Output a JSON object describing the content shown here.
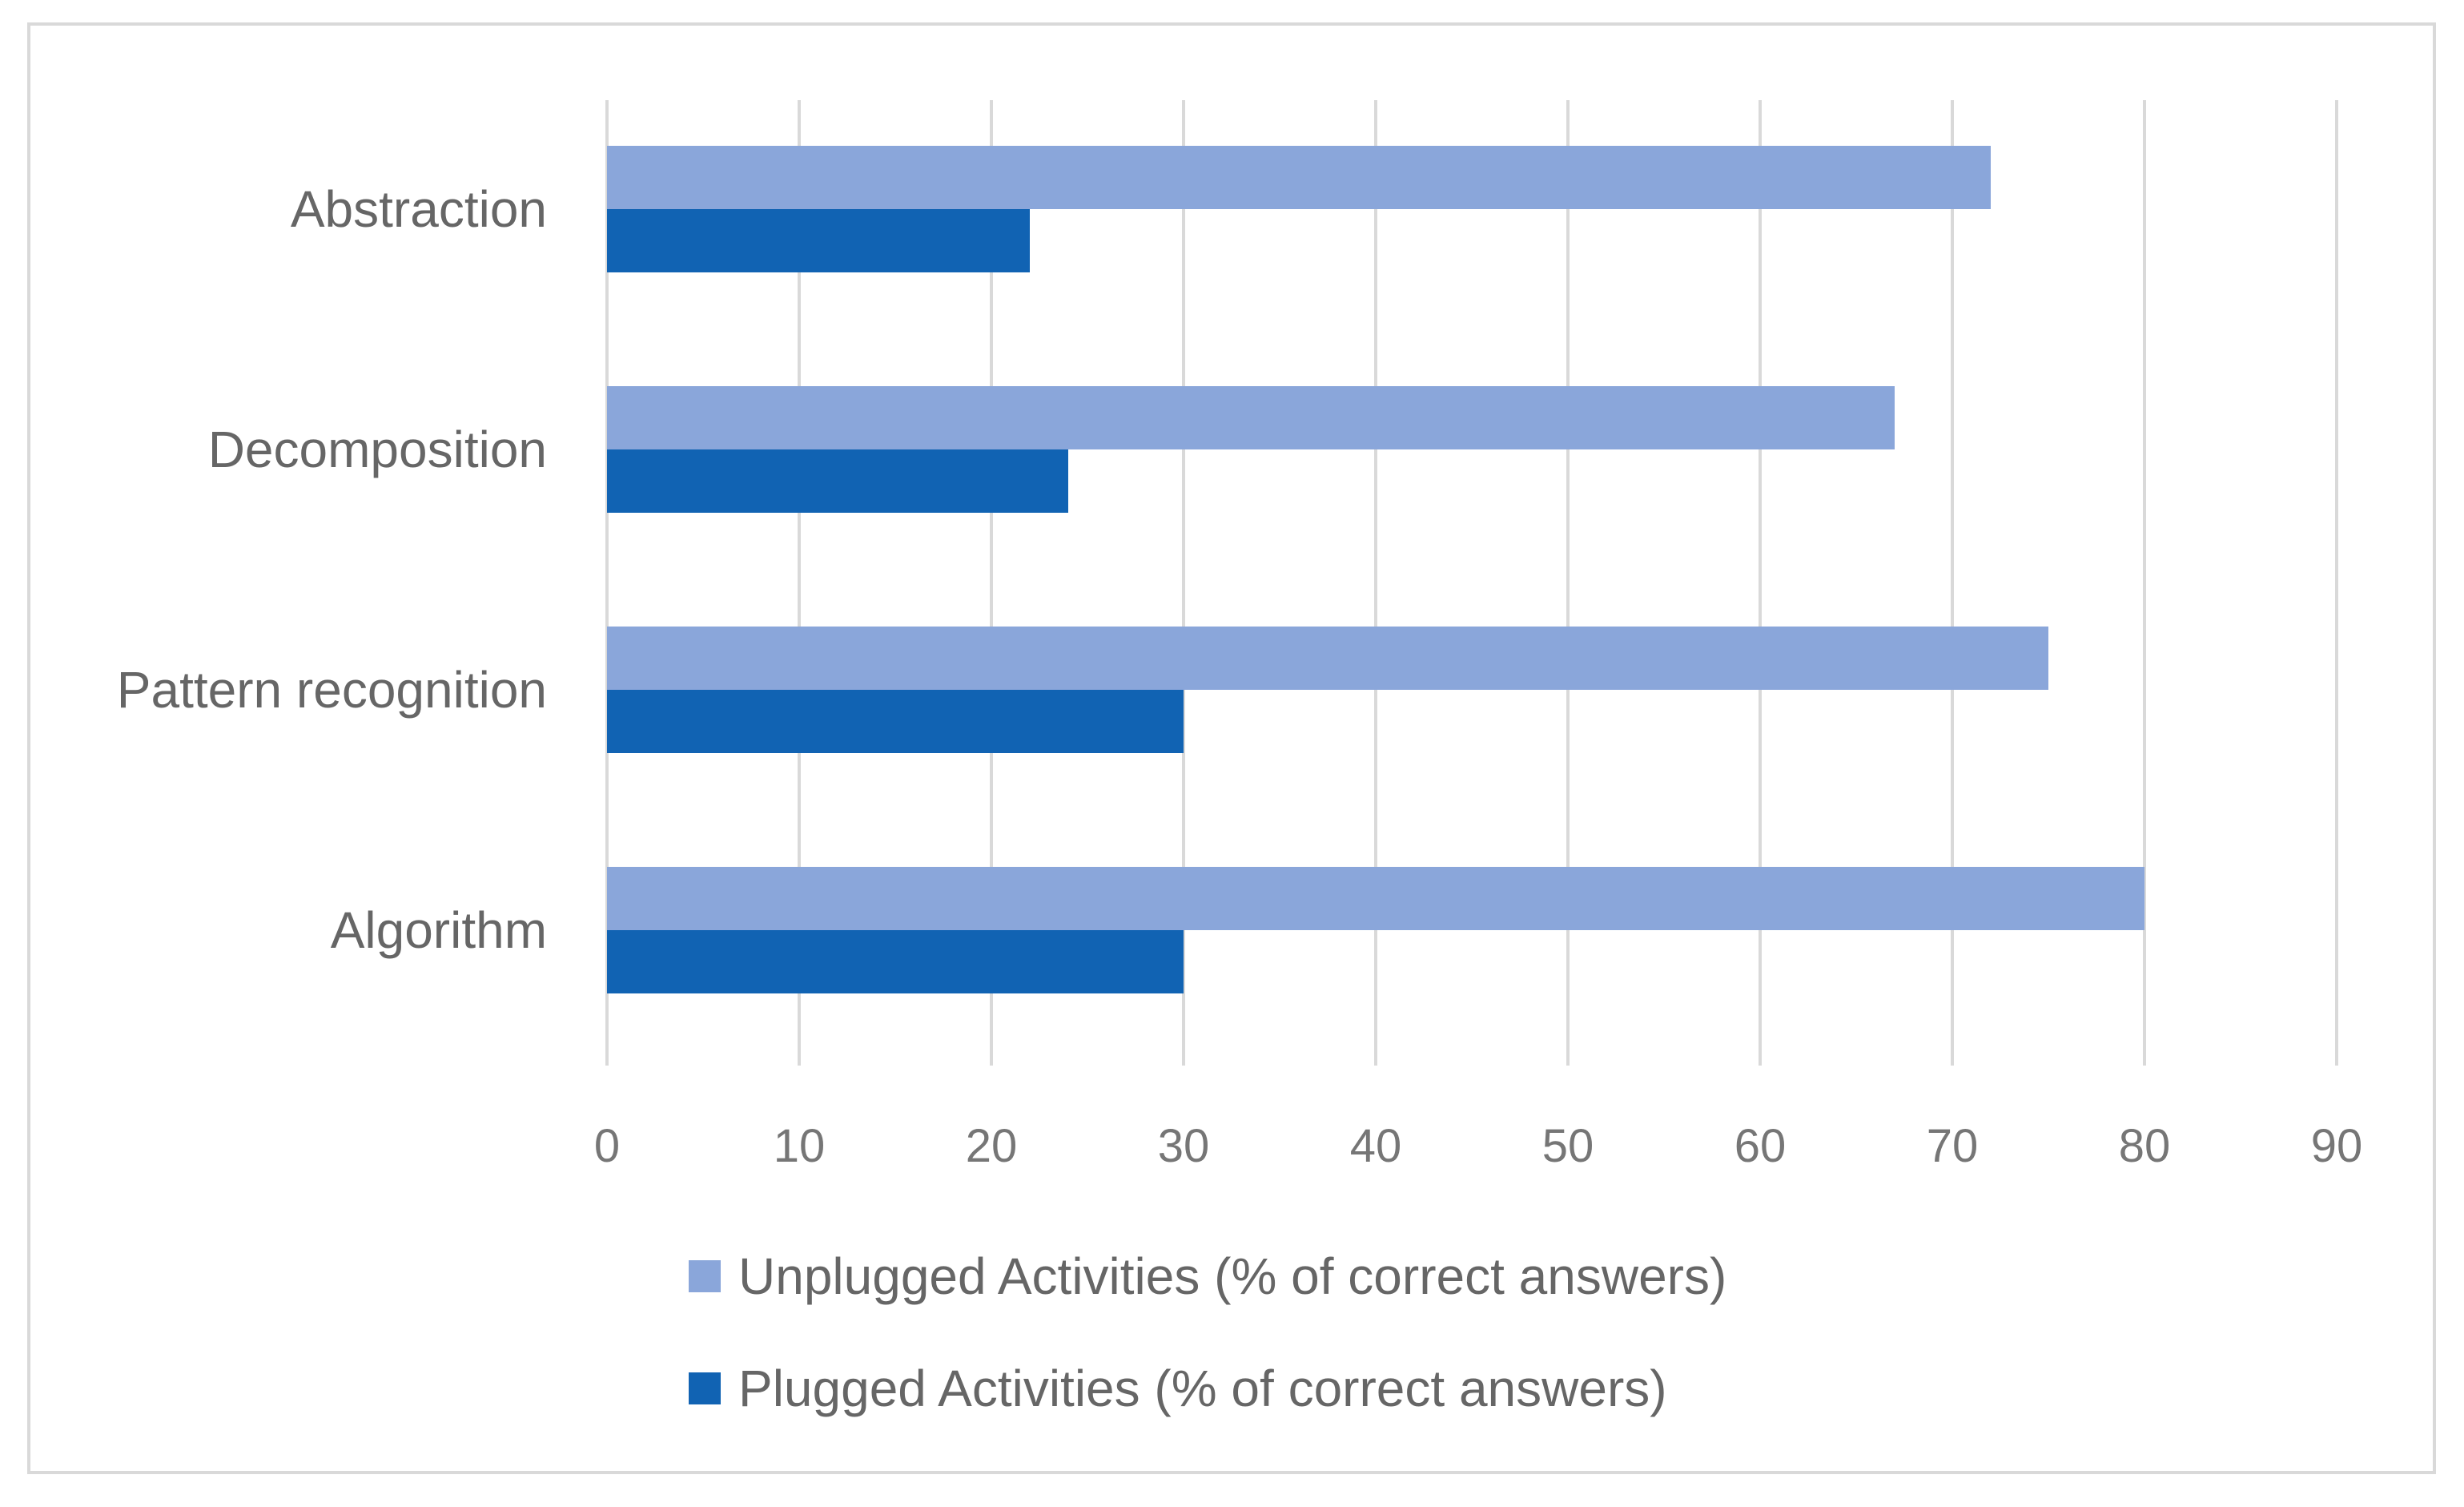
{
  "chart_data": {
    "type": "bar",
    "orientation": "horizontal",
    "categories": [
      "Abstraction",
      "Decomposition",
      "Pattern recognition",
      "Algorithm"
    ],
    "series": [
      {
        "name": "Unplugged Activities (% of correct answers)",
        "values": [
          72,
          67,
          75,
          80
        ],
        "color": "#8aa6da"
      },
      {
        "name": "Plugged Activities (% of correct answers)",
        "values": [
          22,
          24,
          30,
          30
        ],
        "color": "#1163b3"
      }
    ],
    "xticks": [
      0,
      10,
      20,
      30,
      40,
      50,
      60,
      70,
      80,
      90
    ],
    "xlim": [
      0,
      90
    ],
    "title": "",
    "xlabel": "",
    "ylabel": "",
    "grid": true,
    "gridline_color": "#d9d9d9",
    "legend_position": "bottom"
  }
}
